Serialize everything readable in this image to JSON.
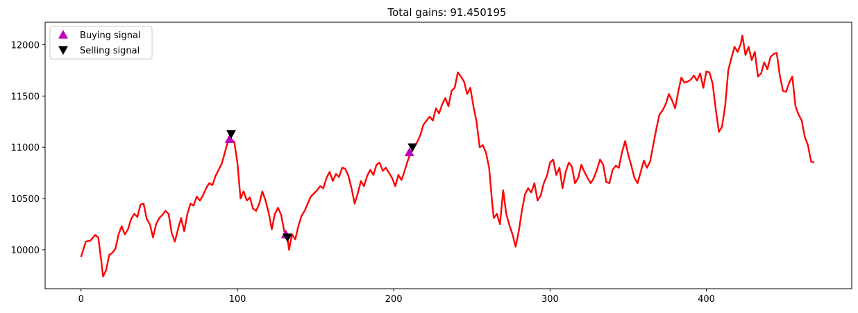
{
  "chart_data": {
    "type": "line",
    "title": "Total gains: 91.450195",
    "xlabel": "",
    "ylabel": "",
    "xlim": [
      -23,
      493
    ],
    "ylim": [
      9620,
      12220
    ],
    "xticks": [
      0,
      100,
      200,
      300,
      400
    ],
    "yticks": [
      10000,
      10500,
      11000,
      11500,
      12000
    ],
    "grid": false,
    "legend_position": "top-left",
    "line_color": "#ff0000",
    "series": [
      {
        "name": "",
        "color": "#ff0000",
        "points": [
          [
            0,
            9930
          ],
          [
            3,
            10080
          ],
          [
            6,
            10090
          ],
          [
            9,
            10145
          ],
          [
            11,
            10120
          ],
          [
            13,
            9880
          ],
          [
            14,
            9740
          ],
          [
            16,
            9800
          ],
          [
            18,
            9950
          ],
          [
            20,
            9970
          ],
          [
            22,
            10010
          ],
          [
            24,
            10150
          ],
          [
            26,
            10230
          ],
          [
            28,
            10150
          ],
          [
            30,
            10200
          ],
          [
            32,
            10300
          ],
          [
            34,
            10350
          ],
          [
            36,
            10320
          ],
          [
            38,
            10440
          ],
          [
            40,
            10450
          ],
          [
            42,
            10300
          ],
          [
            44,
            10250
          ],
          [
            46,
            10120
          ],
          [
            48,
            10250
          ],
          [
            50,
            10310
          ],
          [
            52,
            10340
          ],
          [
            54,
            10380
          ],
          [
            56,
            10350
          ],
          [
            58,
            10160
          ],
          [
            60,
            10080
          ],
          [
            62,
            10200
          ],
          [
            64,
            10310
          ],
          [
            66,
            10180
          ],
          [
            68,
            10350
          ],
          [
            70,
            10450
          ],
          [
            72,
            10430
          ],
          [
            74,
            10520
          ],
          [
            76,
            10480
          ],
          [
            78,
            10530
          ],
          [
            80,
            10600
          ],
          [
            82,
            10650
          ],
          [
            84,
            10630
          ],
          [
            86,
            10720
          ],
          [
            88,
            10780
          ],
          [
            90,
            10840
          ],
          [
            92,
            10950
          ],
          [
            94,
            11060
          ],
          [
            96,
            11080
          ],
          [
            98,
            11050
          ],
          [
            100,
            10850
          ],
          [
            102,
            10500
          ],
          [
            104,
            10570
          ],
          [
            106,
            10480
          ],
          [
            108,
            10510
          ],
          [
            110,
            10400
          ],
          [
            112,
            10380
          ],
          [
            114,
            10450
          ],
          [
            116,
            10570
          ],
          [
            118,
            10480
          ],
          [
            120,
            10360
          ],
          [
            122,
            10200
          ],
          [
            124,
            10350
          ],
          [
            126,
            10410
          ],
          [
            128,
            10340
          ],
          [
            130,
            10180
          ],
          [
            132,
            10120
          ],
          [
            133,
            10000
          ],
          [
            135,
            10150
          ],
          [
            137,
            10100
          ],
          [
            139,
            10230
          ],
          [
            141,
            10330
          ],
          [
            143,
            10380
          ],
          [
            145,
            10450
          ],
          [
            147,
            10520
          ],
          [
            149,
            10550
          ],
          [
            151,
            10580
          ],
          [
            153,
            10620
          ],
          [
            155,
            10600
          ],
          [
            157,
            10700
          ],
          [
            159,
            10760
          ],
          [
            161,
            10670
          ],
          [
            163,
            10740
          ],
          [
            165,
            10710
          ],
          [
            167,
            10800
          ],
          [
            169,
            10790
          ],
          [
            171,
            10720
          ],
          [
            173,
            10600
          ],
          [
            175,
            10450
          ],
          [
            177,
            10550
          ],
          [
            179,
            10670
          ],
          [
            181,
            10620
          ],
          [
            183,
            10720
          ],
          [
            185,
            10780
          ],
          [
            187,
            10730
          ],
          [
            189,
            10830
          ],
          [
            191,
            10850
          ],
          [
            193,
            10770
          ],
          [
            195,
            10800
          ],
          [
            197,
            10750
          ],
          [
            199,
            10700
          ],
          [
            201,
            10620
          ],
          [
            203,
            10730
          ],
          [
            205,
            10680
          ],
          [
            207,
            10770
          ],
          [
            209,
            10870
          ],
          [
            211,
            10950
          ],
          [
            213,
            11010
          ],
          [
            215,
            11050
          ],
          [
            217,
            11120
          ],
          [
            219,
            11220
          ],
          [
            221,
            11260
          ],
          [
            223,
            11300
          ],
          [
            225,
            11260
          ],
          [
            227,
            11380
          ],
          [
            229,
            11330
          ],
          [
            231,
            11420
          ],
          [
            233,
            11480
          ],
          [
            235,
            11400
          ],
          [
            237,
            11550
          ],
          [
            239,
            11580
          ],
          [
            241,
            11730
          ],
          [
            243,
            11690
          ],
          [
            245,
            11640
          ],
          [
            247,
            11520
          ],
          [
            249,
            11580
          ],
          [
            251,
            11400
          ],
          [
            253,
            11250
          ],
          [
            255,
            11000
          ],
          [
            257,
            11020
          ],
          [
            259,
            10950
          ],
          [
            261,
            10800
          ],
          [
            263,
            10450
          ],
          [
            264,
            10310
          ],
          [
            266,
            10350
          ],
          [
            268,
            10250
          ],
          [
            270,
            10580
          ],
          [
            272,
            10350
          ],
          [
            274,
            10240
          ],
          [
            276,
            10150
          ],
          [
            278,
            10030
          ],
          [
            280,
            10180
          ],
          [
            282,
            10380
          ],
          [
            284,
            10540
          ],
          [
            286,
            10600
          ],
          [
            288,
            10560
          ],
          [
            290,
            10650
          ],
          [
            292,
            10480
          ],
          [
            294,
            10530
          ],
          [
            296,
            10650
          ],
          [
            298,
            10720
          ],
          [
            300,
            10850
          ],
          [
            302,
            10880
          ],
          [
            304,
            10730
          ],
          [
            306,
            10800
          ],
          [
            308,
            10600
          ],
          [
            310,
            10760
          ],
          [
            312,
            10850
          ],
          [
            314,
            10810
          ],
          [
            316,
            10650
          ],
          [
            318,
            10700
          ],
          [
            320,
            10830
          ],
          [
            322,
            10760
          ],
          [
            324,
            10700
          ],
          [
            326,
            10650
          ],
          [
            328,
            10700
          ],
          [
            330,
            10780
          ],
          [
            332,
            10880
          ],
          [
            334,
            10830
          ],
          [
            336,
            10660
          ],
          [
            338,
            10650
          ],
          [
            340,
            10780
          ],
          [
            342,
            10820
          ],
          [
            344,
            10800
          ],
          [
            346,
            10950
          ],
          [
            348,
            11060
          ],
          [
            350,
            10930
          ],
          [
            352,
            10820
          ],
          [
            354,
            10700
          ],
          [
            356,
            10650
          ],
          [
            358,
            10760
          ],
          [
            360,
            10870
          ],
          [
            362,
            10800
          ],
          [
            364,
            10860
          ],
          [
            366,
            11020
          ],
          [
            368,
            11180
          ],
          [
            370,
            11320
          ],
          [
            372,
            11360
          ],
          [
            374,
            11420
          ],
          [
            376,
            11520
          ],
          [
            378,
            11460
          ],
          [
            380,
            11380
          ],
          [
            382,
            11540
          ],
          [
            384,
            11680
          ],
          [
            386,
            11630
          ],
          [
            388,
            11640
          ],
          [
            390,
            11660
          ],
          [
            392,
            11700
          ],
          [
            394,
            11650
          ],
          [
            396,
            11720
          ],
          [
            398,
            11580
          ],
          [
            400,
            11740
          ],
          [
            402,
            11730
          ],
          [
            404,
            11620
          ],
          [
            406,
            11370
          ],
          [
            408,
            11150
          ],
          [
            410,
            11200
          ],
          [
            412,
            11400
          ],
          [
            414,
            11750
          ],
          [
            416,
            11870
          ],
          [
            418,
            11980
          ],
          [
            420,
            11930
          ],
          [
            422,
            12010
          ],
          [
            423,
            12090
          ],
          [
            425,
            11900
          ],
          [
            427,
            11980
          ],
          [
            429,
            11850
          ],
          [
            431,
            11930
          ],
          [
            433,
            11690
          ],
          [
            435,
            11720
          ],
          [
            437,
            11830
          ],
          [
            439,
            11760
          ],
          [
            441,
            11880
          ],
          [
            443,
            11910
          ],
          [
            445,
            11920
          ],
          [
            447,
            11700
          ],
          [
            449,
            11550
          ],
          [
            451,
            11540
          ],
          [
            453,
            11630
          ],
          [
            455,
            11690
          ],
          [
            457,
            11400
          ],
          [
            459,
            11320
          ],
          [
            461,
            11260
          ],
          [
            463,
            11100
          ],
          [
            465,
            11020
          ],
          [
            467,
            10860
          ],
          [
            469,
            10850
          ]
        ]
      },
      {
        "name": "Buying signal",
        "color": "#bf00bf",
        "marker": "triangle-up",
        "points": [
          [
            95,
            11080
          ],
          [
            131,
            10150
          ],
          [
            210,
            10950
          ]
        ]
      },
      {
        "name": "Selling signal",
        "color": "#000000",
        "marker": "triangle-down",
        "points": [
          [
            96,
            11130
          ],
          [
            132,
            10120
          ],
          [
            212,
            11000
          ]
        ]
      }
    ]
  }
}
